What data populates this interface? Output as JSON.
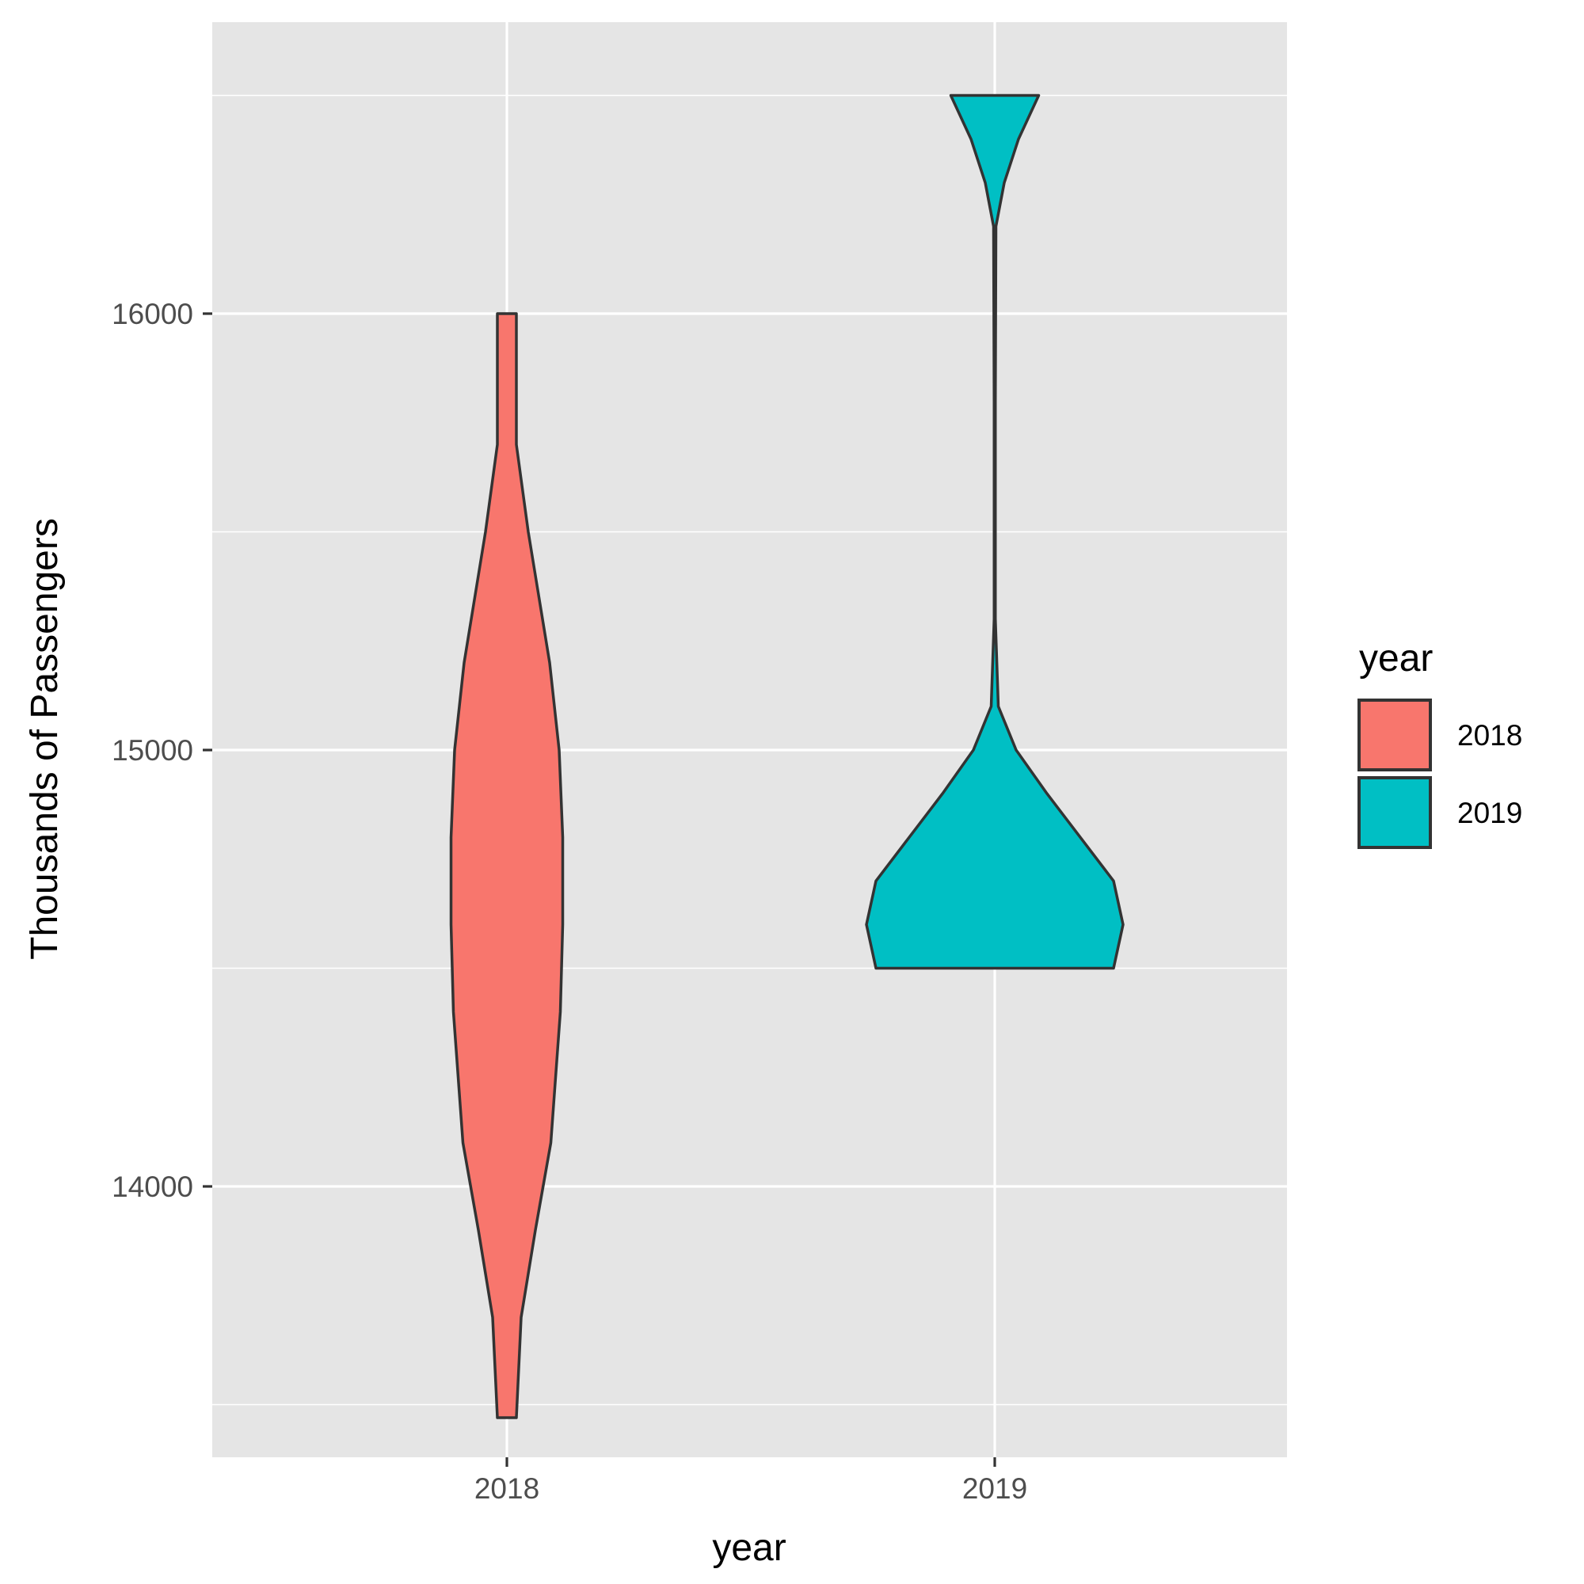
{
  "chart_data": {
    "type": "violin",
    "xlabel": "year",
    "ylabel": "Thousands of Passengers",
    "categories": [
      "2018",
      "2019"
    ],
    "ylim": [
      13050,
      16500
    ],
    "y_ticks": [
      14000,
      15000,
      16000
    ],
    "y_tick_labels": [
      "14000",
      "15000",
      "16000"
    ],
    "grid": true,
    "legend": {
      "title": "year",
      "position": "right",
      "entries": [
        {
          "label": "2018",
          "color": "#F8766D"
        },
        {
          "label": "2019",
          "color": "#00BFC4"
        }
      ]
    },
    "series": [
      {
        "name": "2018",
        "color": "#F8766D",
        "min": 13470,
        "max": 16000,
        "density_profile": [
          [
            13470,
            0.08
          ],
          [
            13700,
            0.12
          ],
          [
            13900,
            0.24
          ],
          [
            14100,
            0.37
          ],
          [
            14400,
            0.45
          ],
          [
            14600,
            0.47
          ],
          [
            14800,
            0.47
          ],
          [
            15000,
            0.44
          ],
          [
            15200,
            0.36
          ],
          [
            15500,
            0.18
          ],
          [
            15700,
            0.08
          ],
          [
            15850,
            0.08
          ],
          [
            16000,
            0.08
          ]
        ]
      },
      {
        "name": "2019",
        "color": "#00BFC4",
        "min": 14500,
        "max": 16500,
        "density_profile": [
          [
            14500,
            1.0
          ],
          [
            14600,
            1.08
          ],
          [
            14700,
            1.0
          ],
          [
            14800,
            0.72
          ],
          [
            14900,
            0.44
          ],
          [
            15000,
            0.18
          ],
          [
            15100,
            0.03
          ],
          [
            15300,
            0.005
          ],
          [
            15800,
            0.005
          ],
          [
            16200,
            0.01
          ],
          [
            16300,
            0.08
          ],
          [
            16400,
            0.2
          ],
          [
            16500,
            0.37
          ]
        ]
      }
    ]
  }
}
